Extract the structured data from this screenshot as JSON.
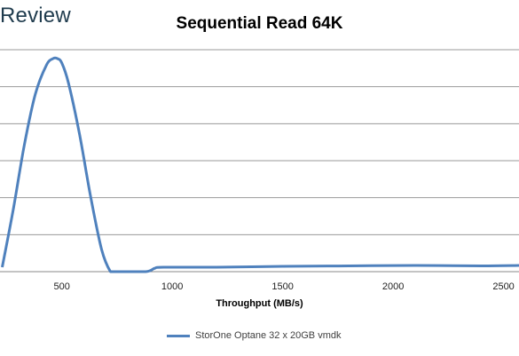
{
  "logo_text": "Review",
  "chart_data": {
    "type": "line",
    "title": "Sequential Read 64K",
    "xlabel": "Throughput (MB/s)",
    "ylabel": "",
    "xlim": [
      220,
      2570
    ],
    "ylim": [
      0,
      1
    ],
    "x_ticks": [
      500,
      1000,
      1500,
      2000,
      2500
    ],
    "grid": true,
    "legend_position": "bottom",
    "series": [
      {
        "name": "StorOne Optane 32 x 20GB vmdk",
        "color": "#4f81bd",
        "x": [
          230,
          280,
          330,
          380,
          430,
          460,
          480,
          500,
          530,
          580,
          630,
          680,
          720,
          740,
          880,
          920,
          960,
          1200,
          1500,
          1800,
          2100,
          2400,
          2570
        ],
        "y": [
          0.02,
          0.28,
          0.57,
          0.8,
          0.93,
          0.96,
          0.96,
          0.94,
          0.85,
          0.62,
          0.34,
          0.1,
          0.0,
          0.0,
          0.0,
          0.015,
          0.02,
          0.02,
          0.024,
          0.026,
          0.028,
          0.026,
          0.028
        ]
      }
    ]
  }
}
